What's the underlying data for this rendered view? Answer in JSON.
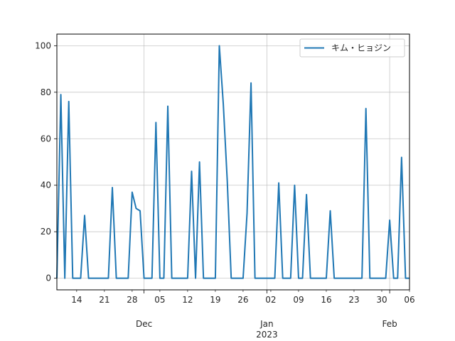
{
  "chart_data": {
    "type": "line",
    "title": "",
    "xlabel": "",
    "ylabel": "",
    "ylim": [
      -5,
      105
    ],
    "xlim": [
      "2022-11-09",
      "2023-02-06"
    ],
    "grid": true,
    "legend_position": "top-right",
    "series": [
      {
        "name": "キム・ヒョジン",
        "color": "#1f77b4",
        "points": [
          [
            "2022-11-09",
            0
          ],
          [
            "2022-11-10",
            79
          ],
          [
            "2022-11-11",
            0
          ],
          [
            "2022-11-12",
            76
          ],
          [
            "2022-11-13",
            0
          ],
          [
            "2022-11-14",
            0
          ],
          [
            "2022-11-15",
            0
          ],
          [
            "2022-11-16",
            27
          ],
          [
            "2022-11-17",
            0
          ],
          [
            "2022-11-18",
            0
          ],
          [
            "2022-11-19",
            0
          ],
          [
            "2022-11-20",
            0
          ],
          [
            "2022-11-21",
            0
          ],
          [
            "2022-11-22",
            0
          ],
          [
            "2022-11-23",
            39
          ],
          [
            "2022-11-24",
            0
          ],
          [
            "2022-11-25",
            0
          ],
          [
            "2022-11-26",
            0
          ],
          [
            "2022-11-27",
            0
          ],
          [
            "2022-11-28",
            37
          ],
          [
            "2022-11-29",
            30
          ],
          [
            "2022-11-30",
            29
          ],
          [
            "2022-12-01",
            0
          ],
          [
            "2022-12-02",
            0
          ],
          [
            "2022-12-03",
            0
          ],
          [
            "2022-12-04",
            67
          ],
          [
            "2022-12-05",
            0
          ],
          [
            "2022-12-06",
            0
          ],
          [
            "2022-12-07",
            74
          ],
          [
            "2022-12-08",
            0
          ],
          [
            "2022-12-09",
            0
          ],
          [
            "2022-12-10",
            0
          ],
          [
            "2022-12-11",
            0
          ],
          [
            "2022-12-12",
            0
          ],
          [
            "2022-12-13",
            46
          ],
          [
            "2022-12-14",
            0
          ],
          [
            "2022-12-15",
            50
          ],
          [
            "2022-12-16",
            0
          ],
          [
            "2022-12-17",
            0
          ],
          [
            "2022-12-18",
            0
          ],
          [
            "2022-12-19",
            0
          ],
          [
            "2022-12-20",
            100
          ],
          [
            "2022-12-21",
            75
          ],
          [
            "2022-12-22",
            42
          ],
          [
            "2022-12-23",
            0
          ],
          [
            "2022-12-24",
            0
          ],
          [
            "2022-12-25",
            0
          ],
          [
            "2022-12-26",
            0
          ],
          [
            "2022-12-27",
            28
          ],
          [
            "2022-12-28",
            84
          ],
          [
            "2022-12-29",
            0
          ],
          [
            "2022-12-30",
            0
          ],
          [
            "2022-12-31",
            0
          ],
          [
            "2023-01-01",
            0
          ],
          [
            "2023-01-02",
            0
          ],
          [
            "2023-01-03",
            0
          ],
          [
            "2023-01-04",
            41
          ],
          [
            "2023-01-05",
            0
          ],
          [
            "2023-01-06",
            0
          ],
          [
            "2023-01-07",
            0
          ],
          [
            "2023-01-08",
            40
          ],
          [
            "2023-01-09",
            0
          ],
          [
            "2023-01-10",
            0
          ],
          [
            "2023-01-11",
            36
          ],
          [
            "2023-01-12",
            0
          ],
          [
            "2023-01-13",
            0
          ],
          [
            "2023-01-14",
            0
          ],
          [
            "2023-01-15",
            0
          ],
          [
            "2023-01-16",
            0
          ],
          [
            "2023-01-17",
            29
          ],
          [
            "2023-01-18",
            0
          ],
          [
            "2023-01-19",
            0
          ],
          [
            "2023-01-20",
            0
          ],
          [
            "2023-01-21",
            0
          ],
          [
            "2023-01-22",
            0
          ],
          [
            "2023-01-23",
            0
          ],
          [
            "2023-01-24",
            0
          ],
          [
            "2023-01-25",
            0
          ],
          [
            "2023-01-26",
            73
          ],
          [
            "2023-01-27",
            0
          ],
          [
            "2023-01-28",
            0
          ],
          [
            "2023-01-29",
            0
          ],
          [
            "2023-01-30",
            0
          ],
          [
            "2023-01-31",
            0
          ],
          [
            "2023-02-01",
            25
          ],
          [
            "2023-02-02",
            0
          ],
          [
            "2023-02-03",
            0
          ],
          [
            "2023-02-04",
            52
          ],
          [
            "2023-02-05",
            0
          ],
          [
            "2023-02-06",
            0
          ]
        ]
      }
    ],
    "y_ticks": [
      0,
      20,
      40,
      60,
      80,
      100
    ],
    "x_minor_ticks": [
      {
        "date": "2022-11-14",
        "label": "14"
      },
      {
        "date": "2022-11-21",
        "label": "21"
      },
      {
        "date": "2022-11-28",
        "label": "28"
      },
      {
        "date": "2022-12-05",
        "label": "05"
      },
      {
        "date": "2022-12-12",
        "label": "12"
      },
      {
        "date": "2022-12-19",
        "label": "19"
      },
      {
        "date": "2022-12-26",
        "label": "26"
      },
      {
        "date": "2023-01-02",
        "label": "02"
      },
      {
        "date": "2023-01-09",
        "label": "09"
      },
      {
        "date": "2023-01-16",
        "label": "16"
      },
      {
        "date": "2023-01-23",
        "label": "23"
      },
      {
        "date": "2023-01-30",
        "label": "30"
      },
      {
        "date": "2023-02-06",
        "label": "06"
      }
    ],
    "x_major_ticks": [
      {
        "date": "2022-12-01",
        "label": "Dec"
      },
      {
        "date": "2023-01-01",
        "label": "Jan\n2023"
      },
      {
        "date": "2023-02-01",
        "label": "Feb"
      }
    ]
  }
}
